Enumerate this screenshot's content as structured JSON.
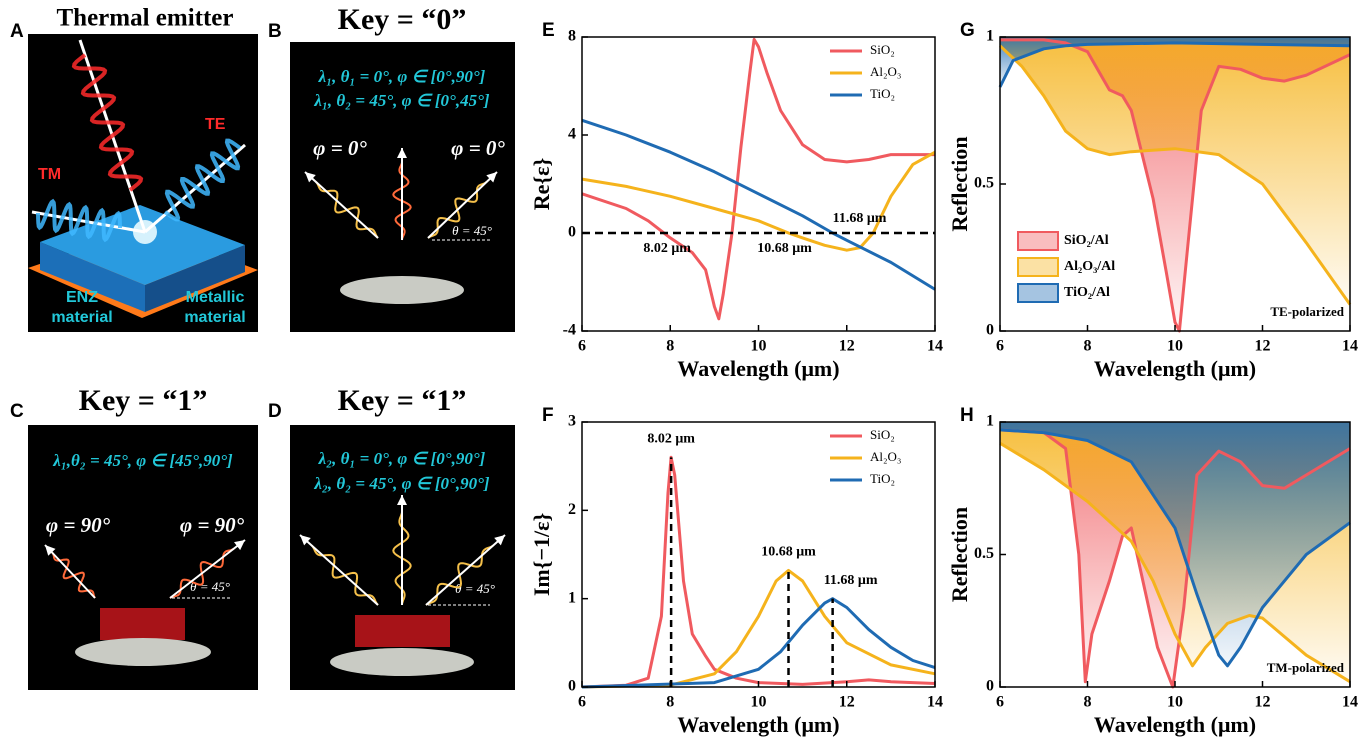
{
  "panels": [
    {
      "label": "A",
      "title": "Thermal emitter",
      "te": "TE",
      "tm": "TM",
      "enz": [
        "ENZ",
        "material"
      ],
      "metal": [
        "Metallic",
        "material"
      ]
    },
    {
      "label": "B",
      "title": "Key = “0”",
      "conditions": [
        "λ₁, θ₁ = 0°, φ ∈ [0°,90°]",
        "λ₁, θ₂ = 45°, φ ∈ [0°,45°]"
      ],
      "phi_left": "φ = 0°",
      "phi_right": "φ = 0°",
      "theta": "θ = 45°"
    },
    {
      "label": "C",
      "title": "Key = “1”",
      "conditions": [
        "λ₁,θ₂ = 45°, φ ∈ [45°,90°]"
      ],
      "phi_left": "φ = 90°",
      "phi_right": "φ = 90°",
      "theta": "θ = 45°"
    },
    {
      "label": "D",
      "title": "Key = “1”",
      "conditions": [
        "λ₂, θ₁ = 0°, φ ∈ [0°,90°]",
        "λ₂, θ₂ = 45°, φ ∈ [0°,90°]"
      ],
      "theta": "θ = 45°"
    }
  ],
  "chart_data": [
    {
      "type": "line",
      "panel_label": "E",
      "ylabel": "Re{ε}",
      "xlabel": "Wavelength (μm)",
      "xlim": [
        6,
        14
      ],
      "xticks": [
        6,
        8,
        10,
        12,
        14
      ],
      "ylim": [
        -4,
        8
      ],
      "yticks": [
        -4,
        0,
        4,
        8
      ],
      "legend": "upper right",
      "hline": 0,
      "markers": [
        {
          "x": 8.02,
          "label": "8.02 μm"
        },
        {
          "x": 10.68,
          "label": "10.68 μm"
        },
        {
          "x": 11.68,
          "label": "11.68 μm"
        }
      ],
      "series": [
        {
          "name": "SiO₂",
          "color": "#f05a5f",
          "x": [
            6,
            7,
            7.5,
            8,
            8.5,
            8.8,
            9,
            9.1,
            9.2,
            9.4,
            9.6,
            9.8,
            9.9,
            10,
            10.2,
            10.5,
            11,
            11.5,
            12,
            12.5,
            13,
            13.5,
            14
          ],
          "values": [
            1.6,
            1.0,
            0.5,
            -0.2,
            -0.8,
            -1.5,
            -3.0,
            -3.5,
            -2.5,
            0,
            3.5,
            6.5,
            7.9,
            7.6,
            6.5,
            5.0,
            3.6,
            3.0,
            2.9,
            3.0,
            3.2,
            3.2,
            3.2
          ]
        },
        {
          "name": "Al₂O₃",
          "color": "#f5b31c",
          "x": [
            6,
            7,
            8,
            9,
            10,
            10.68,
            11,
            11.5,
            12,
            12.3,
            12.6,
            13,
            13.5,
            14
          ],
          "values": [
            2.2,
            1.9,
            1.5,
            1.0,
            0.5,
            0,
            -0.2,
            -0.5,
            -0.7,
            -0.6,
            0,
            1.5,
            2.8,
            3.3
          ]
        },
        {
          "name": "TiO₂",
          "color": "#1f6bb3",
          "x": [
            6,
            7,
            8,
            9,
            10,
            11,
            11.68,
            12,
            13,
            14
          ],
          "values": [
            4.6,
            4.0,
            3.3,
            2.5,
            1.6,
            0.7,
            0,
            -0.3,
            -1.2,
            -2.3
          ]
        }
      ]
    },
    {
      "type": "line",
      "panel_label": "F",
      "ylabel": "Im{−1/ε}",
      "xlabel": "Wavelength (μm)",
      "xlim": [
        6,
        14
      ],
      "xticks": [
        6,
        8,
        10,
        12,
        14
      ],
      "ylim": [
        0,
        3
      ],
      "yticks": [
        0,
        1,
        2,
        3
      ],
      "legend": "upper right",
      "markers": [
        {
          "x": 8.02,
          "y": 2.6,
          "label": "8.02 μm"
        },
        {
          "x": 10.68,
          "y": 1.32,
          "label": "10.68 μm"
        },
        {
          "x": 11.68,
          "y": 1.0,
          "label": "11.68 μm"
        }
      ],
      "series": [
        {
          "name": "SiO₂",
          "color": "#f05a5f",
          "x": [
            6,
            7,
            7.5,
            7.8,
            7.95,
            8.02,
            8.1,
            8.3,
            8.5,
            8.8,
            9,
            9.5,
            10,
            11,
            12,
            12.5,
            13,
            14
          ],
          "values": [
            0,
            0.02,
            0.1,
            0.8,
            2.2,
            2.6,
            2.4,
            1.2,
            0.6,
            0.35,
            0.2,
            0.1,
            0.05,
            0.03,
            0.06,
            0.08,
            0.06,
            0.04
          ]
        },
        {
          "name": "Al₂O₃",
          "color": "#f5b31c",
          "x": [
            6,
            8,
            9,
            9.5,
            10,
            10.4,
            10.68,
            11,
            11.5,
            12,
            13,
            14
          ],
          "values": [
            0,
            0.02,
            0.15,
            0.4,
            0.8,
            1.2,
            1.32,
            1.2,
            0.8,
            0.5,
            0.25,
            0.15
          ]
        },
        {
          "name": "TiO₂",
          "color": "#1f6bb3",
          "x": [
            6,
            9,
            10,
            10.5,
            11,
            11.5,
            11.68,
            12,
            12.5,
            13,
            13.5,
            14
          ],
          "values": [
            0,
            0.05,
            0.2,
            0.4,
            0.7,
            0.95,
            1.0,
            0.9,
            0.65,
            0.45,
            0.3,
            0.22
          ]
        }
      ]
    },
    {
      "type": "area",
      "panel_label": "G",
      "ylabel": "Reflection",
      "xlabel": "Wavelength (μm)",
      "xlim": [
        6,
        14
      ],
      "xticks": [
        6,
        8,
        10,
        12,
        14
      ],
      "ylim": [
        0,
        1
      ],
      "yticks": [
        0,
        0.5,
        1
      ],
      "legend": "lower left",
      "note": "TE-polarized",
      "series": [
        {
          "name": "SiO₂/Al",
          "color": "#f05a5f",
          "x": [
            6,
            7,
            7.5,
            8,
            8.5,
            8.8,
            9,
            9.5,
            9.8,
            10,
            10.1,
            10.3,
            10.6,
            11,
            11.5,
            12,
            12.5,
            13,
            14
          ],
          "values": [
            0.99,
            0.99,
            0.98,
            0.95,
            0.82,
            0.8,
            0.75,
            0.45,
            0.2,
            0.03,
            0.0,
            0.3,
            0.75,
            0.9,
            0.89,
            0.86,
            0.85,
            0.87,
            0.94
          ]
        },
        {
          "name": "Al₂O₃/Al",
          "color": "#f5b31c",
          "x": [
            6,
            6.5,
            7,
            7.5,
            8,
            8.5,
            9,
            10,
            11,
            12,
            13,
            14
          ],
          "values": [
            0.97,
            0.9,
            0.8,
            0.68,
            0.62,
            0.6,
            0.61,
            0.62,
            0.6,
            0.5,
            0.3,
            0.09
          ]
        },
        {
          "name": "TiO₂/Al",
          "color": "#1f6bb3",
          "x": [
            6,
            6.3,
            7,
            7.5,
            8,
            10,
            12,
            14
          ],
          "values": [
            0.83,
            0.92,
            0.96,
            0.97,
            0.975,
            0.98,
            0.975,
            0.97
          ]
        }
      ]
    },
    {
      "type": "area",
      "panel_label": "H",
      "ylabel": "Reflection",
      "xlabel": "Wavelength (μm)",
      "xlim": [
        6,
        14
      ],
      "xticks": [
        6,
        8,
        10,
        12,
        14
      ],
      "ylim": [
        0,
        1
      ],
      "yticks": [
        0,
        0.5,
        1
      ],
      "note": "TM-polarized",
      "series": [
        {
          "name": "SiO₂/Al",
          "color": "#f05a5f",
          "x": [
            6,
            7,
            7.5,
            7.8,
            7.95,
            8.1,
            8.5,
            8.8,
            9,
            9.2,
            9.6,
            9.95,
            10.2,
            10.5,
            11,
            11.5,
            12,
            12.5,
            13,
            14
          ],
          "values": [
            0.97,
            0.96,
            0.9,
            0.5,
            0.02,
            0.2,
            0.4,
            0.57,
            0.6,
            0.45,
            0.15,
            0.0,
            0.3,
            0.8,
            0.89,
            0.85,
            0.76,
            0.75,
            0.8,
            0.9
          ]
        },
        {
          "name": "Al₂O₃/Al",
          "color": "#f5b31c",
          "x": [
            6,
            7,
            8,
            9,
            9.5,
            10,
            10.4,
            10.7,
            11.2,
            11.7,
            12,
            13,
            14
          ],
          "values": [
            0.92,
            0.82,
            0.7,
            0.55,
            0.4,
            0.2,
            0.08,
            0.15,
            0.24,
            0.27,
            0.26,
            0.12,
            0.02
          ]
        },
        {
          "name": "TiO₂/Al",
          "color": "#1f6bb3",
          "x": [
            6,
            7,
            8,
            9,
            10,
            10.5,
            11,
            11.2,
            11.5,
            12,
            13,
            14
          ],
          "values": [
            0.97,
            0.96,
            0.93,
            0.85,
            0.6,
            0.35,
            0.12,
            0.08,
            0.15,
            0.3,
            0.5,
            0.62
          ]
        }
      ]
    }
  ]
}
